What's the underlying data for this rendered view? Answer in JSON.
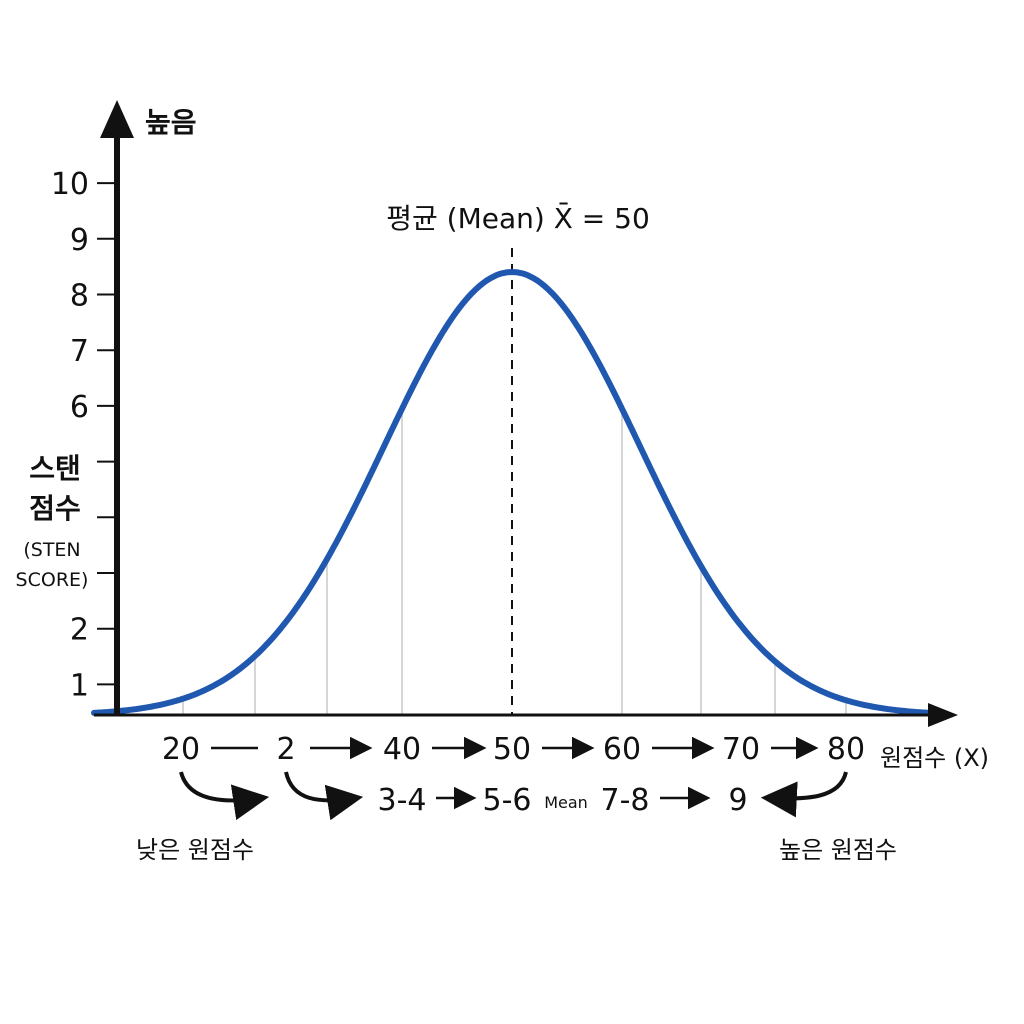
{
  "diagram": {
    "top_label": "높음",
    "ylabel": [
      "스탠",
      "점수",
      "(STEN",
      "SCORE)"
    ],
    "xlabel": "원점수 (X)",
    "mean_caption": "평균 (Mean) X̄ = 50",
    "low_caption": "낮은 원점수",
    "high_caption": "높은 원점수",
    "y_ticks": [
      "1",
      "2",
      "",
      "",
      "",
      "6",
      "7",
      "8",
      "9",
      "10"
    ],
    "raw_row": [
      "20",
      "2",
      "40",
      "50",
      "60",
      "70",
      "80"
    ],
    "sten_row": [
      "3-4",
      "5-6",
      "Mean",
      "7-8",
      "9"
    ],
    "colors": {
      "curve": "#2058b0",
      "axis": "#111111",
      "guides": "#c8c8c8"
    }
  }
}
